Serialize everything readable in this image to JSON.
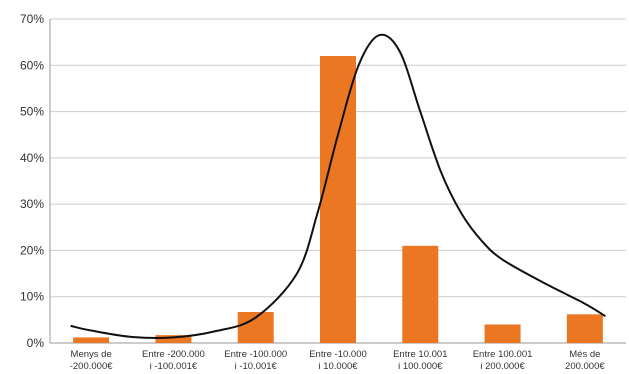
{
  "chart_data": {
    "type": "bar",
    "categories": [
      [
        "Menys de",
        "-200.000€"
      ],
      [
        "Entre -200.000",
        "i -100.001€"
      ],
      [
        "Entre -100.000",
        "i -10.001€"
      ],
      [
        "Entre -10.000",
        "i 10.000€"
      ],
      [
        "Entre 10.001",
        "i 100.000€"
      ],
      [
        "Entre 100.001",
        "i 200.000€"
      ],
      [
        "Més de",
        "200.000€"
      ]
    ],
    "values": [
      1.2,
      1.7,
      6.7,
      62.0,
      21.0,
      4.0,
      6.2
    ],
    "curve": [
      [
        -0.25,
        3.7
      ],
      [
        0.0,
        2.7
      ],
      [
        0.5,
        1.3
      ],
      [
        1.0,
        1.2
      ],
      [
        1.5,
        2.5
      ],
      [
        2.0,
        5.5
      ],
      [
        2.5,
        15
      ],
      [
        2.75,
        28
      ],
      [
        3.0,
        45
      ],
      [
        3.25,
        60
      ],
      [
        3.5,
        66.5
      ],
      [
        3.75,
        63
      ],
      [
        4.0,
        50
      ],
      [
        4.25,
        37
      ],
      [
        4.5,
        28
      ],
      [
        4.75,
        22
      ],
      [
        5.0,
        18
      ],
      [
        5.5,
        13
      ],
      [
        6.0,
        8.5
      ],
      [
        6.25,
        5.8
      ]
    ],
    "yticks": [
      "0%",
      "10%",
      "20%",
      "30%",
      "40%",
      "50%",
      "60%",
      "70%"
    ],
    "ylim": [
      0,
      70
    ],
    "grid": true,
    "colors": {
      "bar": "#ec7723",
      "curve": "#111111",
      "grid": "#cccccc",
      "axis": "#999999"
    }
  }
}
